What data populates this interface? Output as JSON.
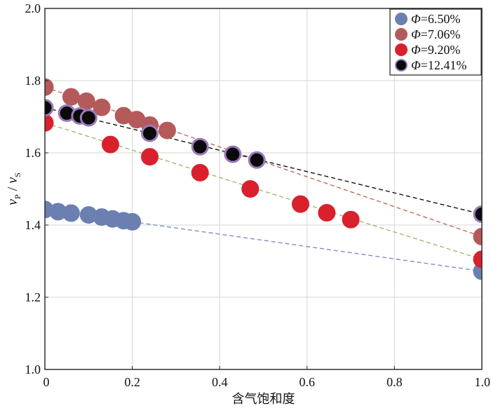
{
  "chart_data": {
    "type": "scatter",
    "title": "",
    "xlabel": "含气饱和度",
    "ylabel": {
      "v1": "v",
      "sub1": "P",
      "sep": " / ",
      "v2": "v",
      "sub2": "S"
    },
    "xlim": [
      0,
      1.0
    ],
    "ylim": [
      1.0,
      2.0
    ],
    "xticks": [
      0,
      0.2,
      0.4,
      0.6,
      0.8,
      1.0
    ],
    "xtick_labels": [
      "0",
      "0.2",
      "0.4",
      "0.6",
      "0.8",
      "1.0"
    ],
    "yticks": [
      1.0,
      1.2,
      1.4,
      1.6,
      1.8,
      2.0
    ],
    "ytick_labels": [
      "1.0",
      "1.2",
      "1.4",
      "1.6",
      "1.8",
      "2.0"
    ],
    "grid": true,
    "legend_position": "top-right",
    "series": [
      {
        "name": "6.50%",
        "legend_prefix": "Φ",
        "legend_eq": "=",
        "color": "#6b80b0",
        "edge": "#6b80b0",
        "line_color": "#7e8fc0",
        "points": [
          [
            0.0,
            1.443
          ],
          [
            0.03,
            1.437
          ],
          [
            0.06,
            1.433
          ],
          [
            0.1,
            1.428
          ],
          [
            0.13,
            1.422
          ],
          [
            0.155,
            1.417
          ],
          [
            0.18,
            1.412
          ],
          [
            0.2,
            1.409
          ],
          [
            1.0,
            1.272
          ]
        ],
        "trend": [
          [
            0.2,
            1.409
          ],
          [
            1.0,
            1.272
          ]
        ]
      },
      {
        "name": "7.06%",
        "legend_prefix": "Φ",
        "legend_eq": "=",
        "color": "#b45a5a",
        "edge": "#b45a5a",
        "line_color": "#c8675e",
        "points": [
          [
            0.0,
            1.782
          ],
          [
            0.06,
            1.755
          ],
          [
            0.095,
            1.743
          ],
          [
            0.13,
            1.726
          ],
          [
            0.18,
            1.703
          ],
          [
            0.21,
            1.692
          ],
          [
            0.24,
            1.677
          ],
          [
            0.28,
            1.662
          ],
          [
            1.0,
            1.368
          ]
        ],
        "trend": [
          [
            0.0,
            1.782
          ],
          [
            1.0,
            1.368
          ]
        ]
      },
      {
        "name": "9.20%",
        "legend_prefix": "Φ",
        "legend_eq": "=",
        "color": "#d8212c",
        "edge": "#d8212c",
        "line_color": "#9cbc6a",
        "points": [
          [
            0.0,
            1.683
          ],
          [
            0.15,
            1.623
          ],
          [
            0.24,
            1.589
          ],
          [
            0.355,
            1.545
          ],
          [
            0.47,
            1.5
          ],
          [
            0.585,
            1.458
          ],
          [
            0.645,
            1.434
          ],
          [
            0.7,
            1.415
          ],
          [
            1.0,
            1.305
          ]
        ],
        "trend": [
          [
            0.0,
            1.683
          ],
          [
            1.0,
            1.305
          ]
        ]
      },
      {
        "name": "12.41%",
        "legend_prefix": "Φ",
        "legend_eq": "=",
        "color": "#0a0a0a",
        "edge": "#9a7ab8",
        "line_color": "#111111",
        "points": [
          [
            0.0,
            1.725
          ],
          [
            0.05,
            1.71
          ],
          [
            0.08,
            1.702
          ],
          [
            0.1,
            1.697
          ],
          [
            0.24,
            1.654
          ],
          [
            0.355,
            1.617
          ],
          [
            0.43,
            1.596
          ],
          [
            0.485,
            1.58
          ],
          [
            1.0,
            1.43
          ]
        ],
        "trend": [
          [
            0.0,
            1.725
          ],
          [
            1.0,
            1.43
          ]
        ]
      }
    ]
  }
}
